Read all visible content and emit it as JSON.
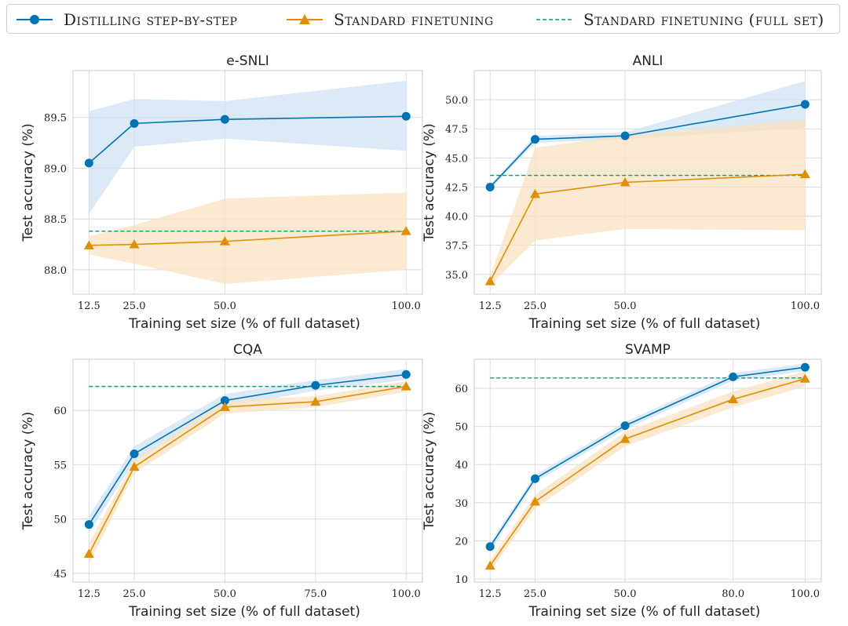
{
  "legend": {
    "entries": [
      {
        "label": "Distilling step-by-step",
        "color": "#0173b2",
        "marker": "circle",
        "style": "solid"
      },
      {
        "label": "Standard finetuning",
        "color": "#de8f05",
        "marker": "triangle",
        "style": "solid"
      },
      {
        "label": "Standard finetuning (full set)",
        "color": "#029e73",
        "marker": "none",
        "style": "dashed"
      }
    ]
  },
  "chart_data": [
    {
      "type": "line",
      "title": "e-SNLI",
      "xlabel": "Training set size (% of full dataset)",
      "ylabel": "Test accuracy (%)",
      "xticks": [
        12.5,
        25.0,
        50.0,
        100.0
      ],
      "xtick_labels": [
        "12.5",
        "25.0",
        "50.0",
        "100.0"
      ],
      "xlim": [
        8.1,
        104.5
      ],
      "yticks": [
        88.0,
        88.5,
        89.0,
        89.5
      ],
      "ytick_labels": [
        "88.0",
        "88.5",
        "89.0",
        "89.5"
      ],
      "ylim": [
        87.76,
        89.96
      ],
      "grid": true,
      "series": [
        {
          "name": "Distilling step-by-step",
          "x": [
            12.5,
            25.0,
            50.0,
            100.0
          ],
          "values": [
            89.05,
            89.44,
            89.48,
            89.51
          ],
          "band_lower": [
            88.55,
            89.21,
            89.29,
            89.17
          ],
          "band_upper": [
            89.56,
            89.68,
            89.66,
            89.86
          ]
        },
        {
          "name": "Standard finetuning",
          "x": [
            12.5,
            25.0,
            50.0,
            100.0
          ],
          "values": [
            88.24,
            88.25,
            88.28,
            88.38
          ],
          "band_lower": [
            88.15,
            88.06,
            87.86,
            88.0
          ],
          "band_upper": [
            88.33,
            88.44,
            88.7,
            88.76
          ]
        }
      ],
      "reference_line": {
        "name": "Standard finetuning (full set)",
        "value": 88.38
      }
    },
    {
      "type": "line",
      "title": "ANLI",
      "xlabel": "Training set size (% of full dataset)",
      "ylabel": "Test accuracy (%)",
      "xticks": [
        12.5,
        25.0,
        50.0,
        100.0
      ],
      "xtick_labels": [
        "12.5",
        "25.0",
        "50.0",
        "100.0"
      ],
      "xlim": [
        8.1,
        104.5
      ],
      "yticks": [
        35.0,
        37.5,
        40.0,
        42.5,
        45.0,
        47.5,
        50.0
      ],
      "ytick_labels": [
        "35.0",
        "37.5",
        "40.0",
        "42.5",
        "45.0",
        "47.5",
        "50.0"
      ],
      "ylim": [
        33.3,
        52.5
      ],
      "grid": true,
      "series": [
        {
          "name": "Distilling step-by-step",
          "x": [
            12.5,
            25.0,
            50.0,
            100.0
          ],
          "values": [
            42.5,
            46.6,
            46.9,
            49.6
          ],
          "band_lower": [
            42.3,
            46.3,
            46.6,
            47.6
          ],
          "band_upper": [
            42.7,
            46.9,
            47.2,
            51.6
          ]
        },
        {
          "name": "Standard finetuning",
          "x": [
            12.5,
            25.0,
            50.0,
            100.0
          ],
          "values": [
            34.4,
            41.9,
            42.9,
            43.6
          ],
          "band_lower": [
            34.0,
            37.9,
            38.9,
            38.8
          ],
          "band_upper": [
            34.8,
            45.9,
            46.9,
            48.3
          ]
        }
      ],
      "reference_line": {
        "name": "Standard finetuning (full set)",
        "value": 43.5
      }
    },
    {
      "type": "line",
      "title": "CQA",
      "xlabel": "Training set size (% of full dataset)",
      "ylabel": "Test accuracy (%)",
      "xticks": [
        12.5,
        25.0,
        50.0,
        75.0,
        100.0
      ],
      "xtick_labels": [
        "12.5",
        "25.0",
        "50.0",
        "75.0",
        "100.0"
      ],
      "xlim": [
        8.1,
        104.5
      ],
      "yticks": [
        45,
        50,
        55,
        60
      ],
      "ytick_labels": [
        "45",
        "50",
        "55",
        "60"
      ],
      "ylim": [
        44.2,
        64.7
      ],
      "grid": true,
      "series": [
        {
          "name": "Distilling step-by-step",
          "x": [
            12.5,
            25.0,
            50.0,
            75.0,
            100.0
          ],
          "values": [
            49.5,
            56.0,
            60.9,
            62.3,
            63.3
          ],
          "band_lower": [
            48.7,
            55.3,
            60.3,
            61.8,
            62.8
          ],
          "band_upper": [
            50.3,
            56.7,
            61.5,
            62.8,
            63.8
          ]
        },
        {
          "name": "Standard finetuning",
          "x": [
            12.5,
            25.0,
            50.0,
            75.0,
            100.0
          ],
          "values": [
            46.8,
            54.8,
            60.3,
            60.8,
            62.2
          ],
          "band_lower": [
            45.8,
            54.2,
            59.7,
            60.3,
            61.7
          ],
          "band_upper": [
            47.8,
            55.4,
            60.9,
            61.3,
            62.7
          ]
        }
      ],
      "reference_line": {
        "name": "Standard finetuning (full set)",
        "value": 62.2
      }
    },
    {
      "type": "line",
      "title": "SVAMP",
      "xlabel": "Training set size (% of full dataset)",
      "ylabel": "Test accuracy (%)",
      "xticks": [
        12.5,
        25.0,
        50.0,
        80.0,
        100.0
      ],
      "xtick_labels": [
        "12.5",
        "25.0",
        "50.0",
        "80.0",
        "100.0"
      ],
      "xlim": [
        8.1,
        104.5
      ],
      "yticks": [
        10,
        20,
        30,
        40,
        50,
        60
      ],
      "ytick_labels": [
        "10",
        "20",
        "30",
        "40",
        "50",
        "60"
      ],
      "ylim": [
        9.2,
        67.6
      ],
      "grid": true,
      "series": [
        {
          "name": "Distilling step-by-step",
          "x": [
            12.5,
            25.0,
            50.0,
            80.0,
            100.0
          ],
          "values": [
            18.5,
            36.3,
            50.2,
            63.0,
            65.5
          ],
          "band_lower": [
            17.5,
            35.3,
            49.2,
            62.0,
            64.5
          ],
          "band_upper": [
            19.5,
            37.3,
            51.2,
            64.0,
            66.5
          ]
        },
        {
          "name": "Standard finetuning",
          "x": [
            12.5,
            25.0,
            50.0,
            80.0,
            100.0
          ],
          "values": [
            13.5,
            30.3,
            46.7,
            57.1,
            62.5
          ],
          "band_lower": [
            12.0,
            28.5,
            44.8,
            55.0,
            60.5
          ],
          "band_upper": [
            15.0,
            32.1,
            48.6,
            59.2,
            64.5
          ]
        }
      ],
      "reference_line": {
        "name": "Standard finetuning (full set)",
        "value": 62.7
      }
    }
  ]
}
